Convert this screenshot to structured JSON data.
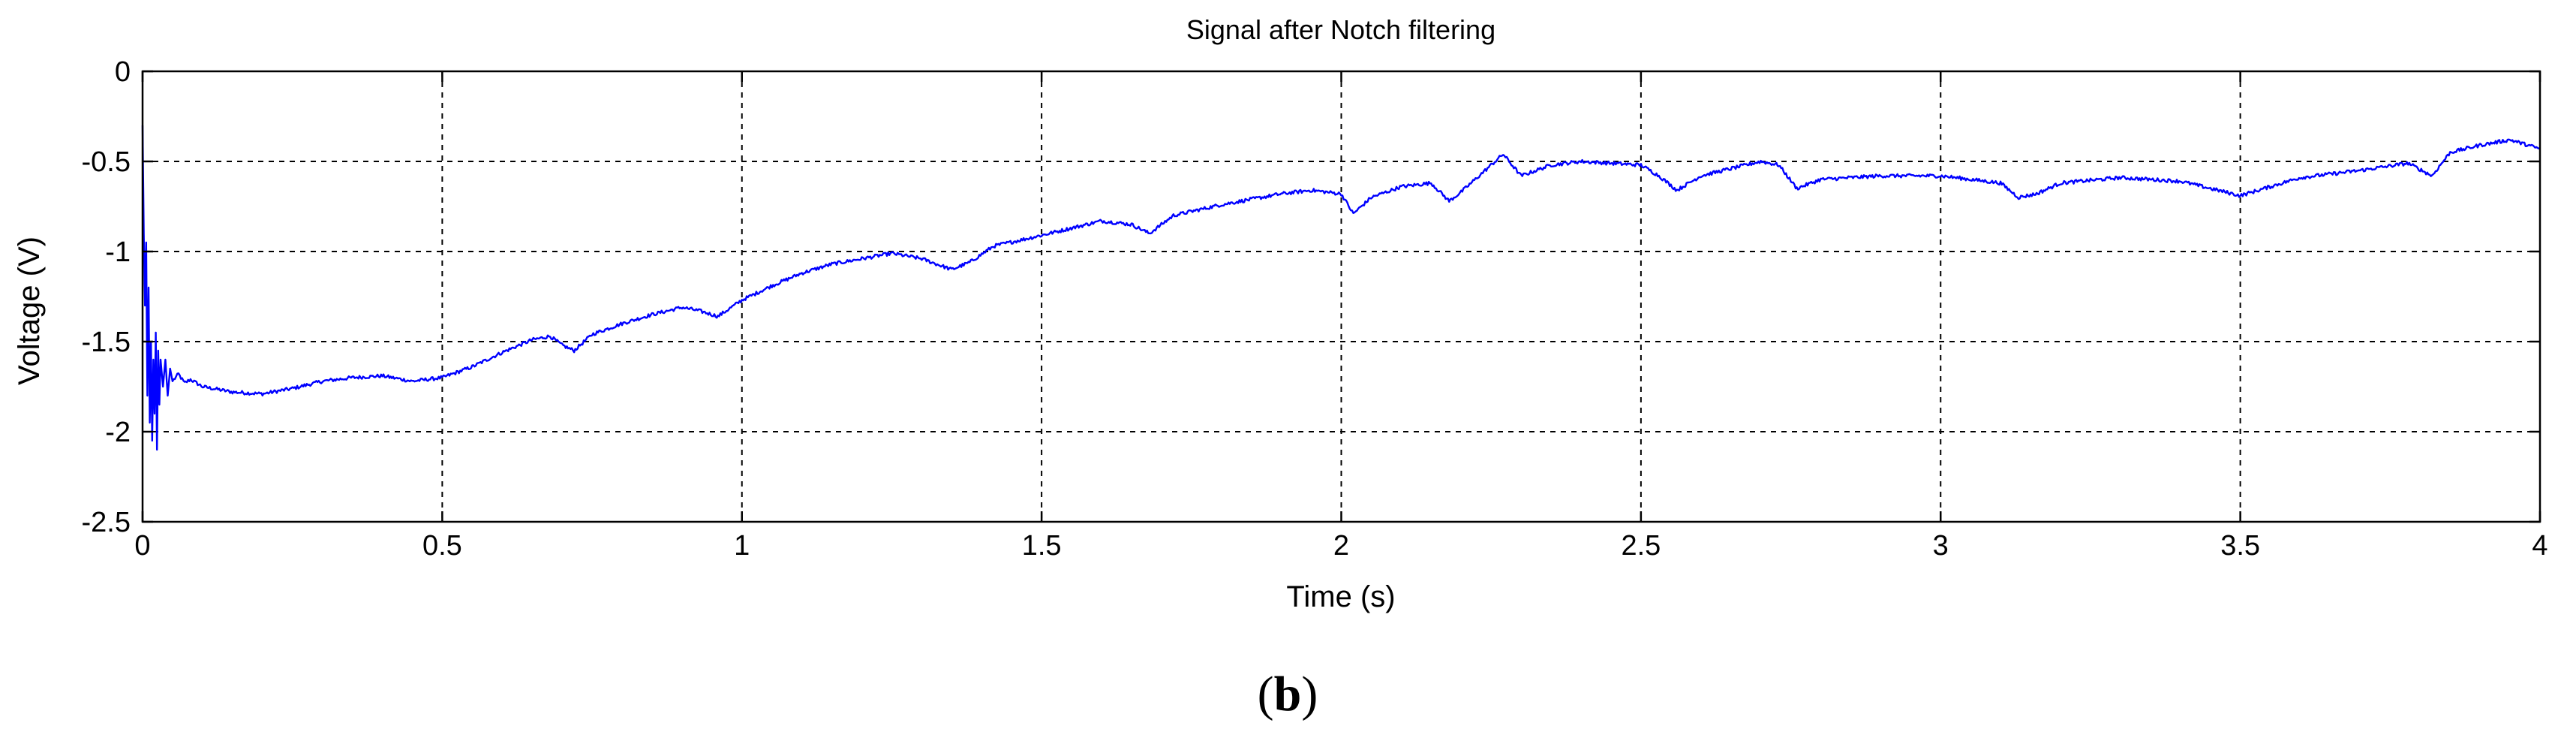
{
  "chart_data": {
    "type": "line",
    "title": "Signal after Notch filtering",
    "xlabel": "Time (s)",
    "ylabel": "Voltage (V)",
    "xlim": [
      0,
      4
    ],
    "ylim": [
      -2.5,
      0
    ],
    "grid": true,
    "x_ticks": [
      0,
      0.5,
      1,
      1.5,
      2,
      2.5,
      3,
      3.5,
      4
    ],
    "x_tick_labels": [
      "0",
      "0.5",
      "1",
      "1.5",
      "2",
      "2.5",
      "3",
      "3.5",
      "4"
    ],
    "y_ticks": [
      0,
      -0.5,
      -1,
      -1.5,
      -2,
      -2.5
    ],
    "y_tick_labels": [
      "0",
      "-0.5",
      "-1",
      "-1.5",
      "-2",
      "-2.5"
    ],
    "series": [
      {
        "color": "#0000ff",
        "points": [
          [
            0,
            -0.3
          ],
          [
            0.002,
            -0.9
          ],
          [
            0.004,
            -1.3
          ],
          [
            0.006,
            -0.95
          ],
          [
            0.008,
            -1.8
          ],
          [
            0.01,
            -1.2
          ],
          [
            0.012,
            -1.95
          ],
          [
            0.014,
            -1.5
          ],
          [
            0.016,
            -2.05
          ],
          [
            0.018,
            -1.6
          ],
          [
            0.02,
            -1.9
          ],
          [
            0.022,
            -1.45
          ],
          [
            0.024,
            -2.1
          ],
          [
            0.026,
            -1.55
          ],
          [
            0.028,
            -1.85
          ],
          [
            0.03,
            -1.6
          ],
          [
            0.034,
            -1.75
          ],
          [
            0.038,
            -1.6
          ],
          [
            0.042,
            -1.8
          ],
          [
            0.046,
            -1.65
          ],
          [
            0.05,
            -1.72
          ],
          [
            0.06,
            -1.68
          ],
          [
            0.07,
            -1.73
          ],
          [
            0.08,
            -1.71
          ],
          [
            0.1,
            -1.75
          ],
          [
            0.15,
            -1.78
          ],
          [
            0.2,
            -1.79
          ],
          [
            0.25,
            -1.76
          ],
          [
            0.3,
            -1.72
          ],
          [
            0.35,
            -1.7
          ],
          [
            0.4,
            -1.69
          ],
          [
            0.45,
            -1.72
          ],
          [
            0.5,
            -1.7
          ],
          [
            0.55,
            -1.64
          ],
          [
            0.6,
            -1.56
          ],
          [
            0.65,
            -1.49
          ],
          [
            0.68,
            -1.47
          ],
          [
            0.7,
            -1.52
          ],
          [
            0.72,
            -1.55
          ],
          [
            0.75,
            -1.46
          ],
          [
            0.8,
            -1.4
          ],
          [
            0.85,
            -1.35
          ],
          [
            0.9,
            -1.31
          ],
          [
            0.93,
            -1.33
          ],
          [
            0.96,
            -1.36
          ],
          [
            1.0,
            -1.27
          ],
          [
            1.05,
            -1.19
          ],
          [
            1.1,
            -1.12
          ],
          [
            1.15,
            -1.07
          ],
          [
            1.2,
            -1.04
          ],
          [
            1.25,
            -1.01
          ],
          [
            1.3,
            -1.04
          ],
          [
            1.35,
            -1.1
          ],
          [
            1.38,
            -1.06
          ],
          [
            1.42,
            -0.97
          ],
          [
            1.5,
            -0.91
          ],
          [
            1.55,
            -0.87
          ],
          [
            1.6,
            -0.83
          ],
          [
            1.65,
            -0.85
          ],
          [
            1.68,
            -0.9
          ],
          [
            1.72,
            -0.8
          ],
          [
            1.8,
            -0.74
          ],
          [
            1.85,
            -0.71
          ],
          [
            1.9,
            -0.68
          ],
          [
            1.95,
            -0.66
          ],
          [
            2.0,
            -0.68
          ],
          [
            2.02,
            -0.79
          ],
          [
            2.05,
            -0.7
          ],
          [
            2.1,
            -0.64
          ],
          [
            2.15,
            -0.62
          ],
          [
            2.18,
            -0.72
          ],
          [
            2.2,
            -0.67
          ],
          [
            2.25,
            -0.52
          ],
          [
            2.27,
            -0.46
          ],
          [
            2.3,
            -0.58
          ],
          [
            2.35,
            -0.52
          ],
          [
            2.4,
            -0.5
          ],
          [
            2.45,
            -0.51
          ],
          [
            2.5,
            -0.52
          ],
          [
            2.53,
            -0.58
          ],
          [
            2.56,
            -0.66
          ],
          [
            2.6,
            -0.58
          ],
          [
            2.65,
            -0.54
          ],
          [
            2.7,
            -0.5
          ],
          [
            2.73,
            -0.52
          ],
          [
            2.76,
            -0.65
          ],
          [
            2.8,
            -0.6
          ],
          [
            2.9,
            -0.58
          ],
          [
            3.0,
            -0.58
          ],
          [
            3.1,
            -0.62
          ],
          [
            3.13,
            -0.7
          ],
          [
            3.16,
            -0.68
          ],
          [
            3.2,
            -0.62
          ],
          [
            3.3,
            -0.59
          ],
          [
            3.4,
            -0.61
          ],
          [
            3.45,
            -0.65
          ],
          [
            3.5,
            -0.69
          ],
          [
            3.55,
            -0.64
          ],
          [
            3.6,
            -0.59
          ],
          [
            3.7,
            -0.55
          ],
          [
            3.78,
            -0.51
          ],
          [
            3.82,
            -0.58
          ],
          [
            3.85,
            -0.45
          ],
          [
            3.9,
            -0.41
          ],
          [
            3.95,
            -0.38
          ],
          [
            4.0,
            -0.43
          ]
        ]
      }
    ]
  },
  "caption": {
    "open": "(",
    "letter": "b",
    "close": ")"
  }
}
